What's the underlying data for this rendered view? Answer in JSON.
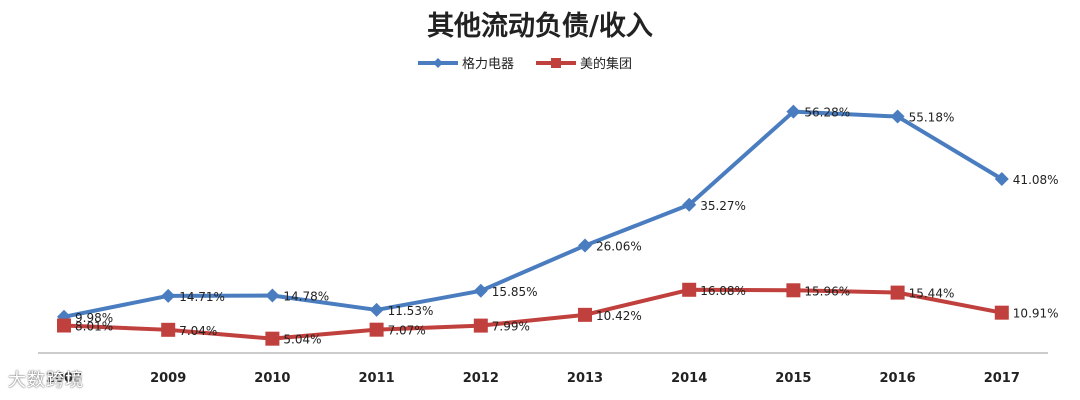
{
  "chart_data": {
    "type": "line",
    "title": "其他流动负债/收入",
    "categories": [
      "2008",
      "2009",
      "2010",
      "2011",
      "2012",
      "2013",
      "2014",
      "2015",
      "2016",
      "2017"
    ],
    "series": [
      {
        "name": "格力电器",
        "color": "#4a7dbf",
        "marker": "diamond",
        "values": [
          9.98,
          14.71,
          14.78,
          11.53,
          15.85,
          26.06,
          35.27,
          56.28,
          55.18,
          41.08
        ],
        "labels": [
          "9.98%",
          "14.71%",
          "14.78%",
          "11.53%",
          "15.85%",
          "26.06%",
          "35.27%",
          "56.28%",
          "55.18%",
          "41.08%"
        ]
      },
      {
        "name": "美的集团",
        "color": "#c0403d",
        "marker": "square",
        "values": [
          8.01,
          7.04,
          5.04,
          7.07,
          7.99,
          10.42,
          16.08,
          15.96,
          15.44,
          10.91
        ],
        "labels": [
          "8.01%",
          "7.04%",
          "5.04%",
          "7.07%",
          "7.99%",
          "10.42%",
          "16.08%",
          "15.96%",
          "15.44%",
          "10.91%"
        ]
      }
    ],
    "ylim": [
      0,
      60
    ],
    "grid": false,
    "legend": "top-center"
  },
  "watermark": "大数跨境"
}
